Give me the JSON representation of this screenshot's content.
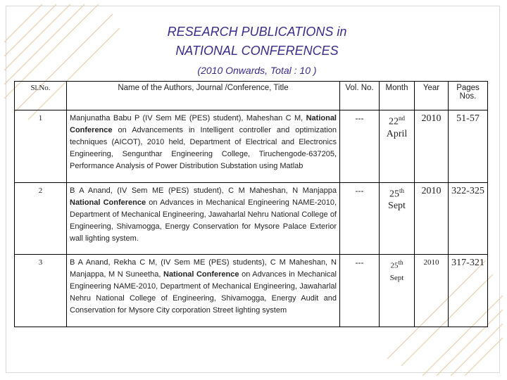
{
  "title_line1": "RESEARCH PUBLICATIONS in",
  "title_line2": "NATIONAL CONFERENCES",
  "subtitle": "(2010 Onwards, Total : 10 )",
  "headers": {
    "sl": "Sl.No.",
    "name": "Name of the Authors, Journal /Conference, Title",
    "vol": "Vol. No.",
    "month": "Month",
    "year": "Year",
    "pages": "Pages Nos."
  },
  "rows": [
    {
      "sl": "1",
      "pre": "Manjunatha Babu P (IV Sem ME (PES) student), Maheshan C M,",
      "conf": "National Conference",
      "post": " on Advancements in Intelligent controller and optimization techniques (AICOT), 2010 held, Department of Electrical and Electronics Engineering, Sengunthar Engineering College, Tiruchengode-637205, Performance Analysis of Power Distribution Substation using Matlab",
      "vol": "---",
      "day": "22",
      "day_sup": "nd",
      "month": "April",
      "year": "2010",
      "pages": "51-57"
    },
    {
      "sl": "2",
      "pre": "B A Anand, (IV Sem ME (PES) student), C M Maheshan, N Manjappa ",
      "conf": "National Conference",
      "post": " on Advances in Mechanical Engineering NAME-2010, Department of Mechanical Engineering, Jawaharlal Nehru National College of Engineering, Shivamogga, Energy Conservation for Mysore Palace Exterior wall lighting system.",
      "vol": "---",
      "day": "25",
      "day_sup": "th",
      "month": "Sept",
      "year": "2010",
      "pages": "322-325"
    },
    {
      "sl": "3",
      "pre": "B A Anand, Rekha C M, (IV Sem ME (PES) students), C M Maheshan, N Manjappa, M N Suneetha, ",
      "conf": "National Conference",
      "post": " on Advances in Mechanical Engineering NAME-2010, Department of Mechanical Engineering, Jawaharlal Nehru National College of Engineering, Shivamogga, Energy Audit and Conservation for Mysore City corporation Street lighting system",
      "vol": "---",
      "day": "25",
      "day_sup": "th",
      "month": "Sept",
      "year": "2010",
      "pages": "317-321"
    }
  ]
}
